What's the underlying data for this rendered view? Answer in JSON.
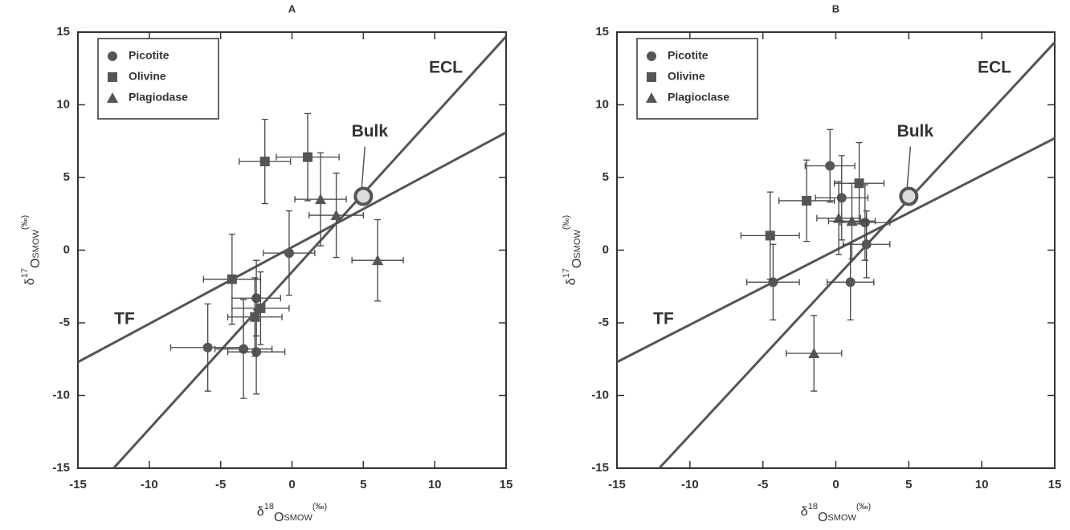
{
  "chart_data": [
    {
      "type": "scatter",
      "title": "A",
      "x_label": [
        "δ",
        "18",
        "O",
        "SMOW",
        "(‰)"
      ],
      "y_label": [
        "δ",
        "17",
        "O",
        "SMOW",
        "(‰)"
      ],
      "xlim": [
        -15,
        15
      ],
      "ylim": [
        -15,
        15
      ],
      "xticks": [
        -15,
        -10,
        -5,
        0,
        5,
        10,
        15
      ],
      "yticks": [
        -15,
        -10,
        -5,
        0,
        5,
        10,
        15
      ],
      "legend": "top-left",
      "series": [
        {
          "name": "Picotite",
          "marker": "circle",
          "color": "#555555",
          "x": [
            -5.9,
            -3.4,
            -2.5,
            -2.5,
            -0.2
          ],
          "values": [
            -6.7,
            -6.8,
            -7.0,
            -3.3,
            -0.2
          ],
          "xerr": [
            2.6,
            2.0,
            2.0,
            1.7,
            1.8
          ],
          "yerr": [
            3.0,
            3.4,
            2.9,
            2.6,
            2.9
          ]
        },
        {
          "name": "Olivine",
          "marker": "square",
          "color": "#555555",
          "x": [
            -1.9,
            1.1,
            -4.2,
            -2.2,
            -2.6
          ],
          "values": [
            6.1,
            6.4,
            -2.0,
            -4.0,
            -4.6
          ],
          "xerr": [
            1.8,
            2.2,
            2.0,
            2.0,
            1.9
          ],
          "yerr": [
            2.9,
            3.0,
            3.1,
            2.5,
            2.7
          ]
        },
        {
          "name": "Plagiodase",
          "marker": "triangle",
          "color": "#555555",
          "x": [
            2.0,
            3.1,
            6.0
          ],
          "values": [
            3.5,
            2.4,
            -0.7
          ],
          "xerr": [
            1.8,
            1.9,
            1.8
          ],
          "yerr": [
            3.2,
            2.9,
            2.8
          ]
        }
      ],
      "lines": [
        {
          "name": "ECL",
          "color": "#555555",
          "x": [
            -12.5,
            15
          ],
          "y": [
            -15,
            14.7
          ]
        },
        {
          "name": "TF",
          "color": "#555555",
          "x": [
            -15,
            15
          ],
          "y": [
            -7.7,
            8.1
          ]
        }
      ],
      "bulk": {
        "name": "Bulk",
        "x": 5,
        "y": 3.7
      }
    },
    {
      "type": "scatter",
      "title": "B",
      "x_label": [
        "δ",
        "18",
        "O",
        "SMOW",
        "(‰)"
      ],
      "y_label": [
        "δ",
        "17",
        "O",
        "SMOW",
        "(‰)"
      ],
      "xlim": [
        -15,
        15
      ],
      "ylim": [
        -15,
        15
      ],
      "xticks": [
        -15,
        -10,
        -5,
        0,
        5,
        10,
        15
      ],
      "yticks": [
        -15,
        -10,
        -5,
        0,
        5,
        10,
        15
      ],
      "legend": "top-left",
      "series": [
        {
          "name": "Picotite",
          "marker": "circle",
          "color": "#555555",
          "x": [
            -0.4,
            0.4,
            2.0,
            2.1,
            1.0,
            -4.3
          ],
          "values": [
            5.8,
            3.6,
            1.9,
            0.4,
            -2.2,
            -2.2
          ],
          "xerr": [
            1.7,
            1.8,
            1.7,
            1.6,
            1.6,
            1.8
          ],
          "yerr": [
            2.5,
            2.9,
            2.6,
            2.3,
            2.6,
            2.6
          ]
        },
        {
          "name": "Olivine",
          "marker": "square",
          "color": "#555555",
          "x": [
            -4.5,
            -2.0,
            1.6
          ],
          "values": [
            1.0,
            3.4,
            4.6
          ],
          "xerr": [
            2.0,
            1.9,
            1.7
          ],
          "yerr": [
            3.0,
            2.8,
            2.8
          ]
        },
        {
          "name": "Plagioclase",
          "marker": "triangle",
          "color": "#555555",
          "x": [
            0.2,
            1.1,
            -1.5
          ],
          "values": [
            2.2,
            2.0,
            -7.1
          ],
          "xerr": [
            1.5,
            1.6,
            1.9
          ],
          "yerr": [
            2.5,
            2.6,
            2.6
          ]
        }
      ],
      "lines": [
        {
          "name": "ECL",
          "color": "#555555",
          "x": [
            -12.1,
            15
          ],
          "y": [
            -15,
            14.3
          ]
        },
        {
          "name": "TF",
          "color": "#555555",
          "x": [
            -15,
            15
          ],
          "y": [
            -7.7,
            7.7
          ]
        }
      ],
      "bulk": {
        "name": "Bulk",
        "x": 5,
        "y": 3.7
      }
    }
  ]
}
